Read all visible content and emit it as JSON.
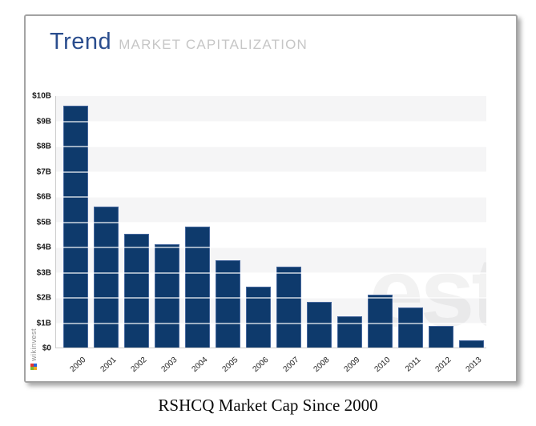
{
  "header": {
    "title": "Trend",
    "subtitle": "MARKET CAPITALIZATION"
  },
  "chart_data": {
    "type": "bar",
    "title": "Trend MARKET CAPITALIZATION",
    "categories": [
      "2000",
      "2001",
      "2002",
      "2003",
      "2004",
      "2005",
      "2006",
      "2007",
      "2008",
      "2009",
      "2010",
      "2011",
      "2012",
      "2013"
    ],
    "values": [
      9.6,
      5.6,
      4.5,
      4.1,
      4.8,
      3.45,
      2.4,
      3.2,
      1.8,
      1.25,
      2.1,
      1.6,
      0.85,
      0.3
    ],
    "unit": "billions USD",
    "xlabel": "",
    "ylabel": "",
    "ylim": [
      0,
      10
    ],
    "ytick_labels": [
      "$10B",
      "$9B",
      "$8B",
      "$7B",
      "$6B",
      "$5B",
      "$4B",
      "$3B",
      "$2B",
      "$1B",
      "$0"
    ],
    "legend": "none",
    "grid": "alternating horizontal bands",
    "colors": {
      "bar": "#0e3a6c",
      "bar_border": "#47689e",
      "band_gray": "#f5f5f6",
      "band_white": "#ffffff",
      "axis": "#cccccc",
      "title_blue": "#2a4d8e",
      "subtitle_gray": "#c6c6c6"
    }
  },
  "watermark": {
    "text": "est"
  },
  "logo": {
    "text": "wikinvest"
  },
  "caption": "RSHCQ Market Cap Since 2000"
}
